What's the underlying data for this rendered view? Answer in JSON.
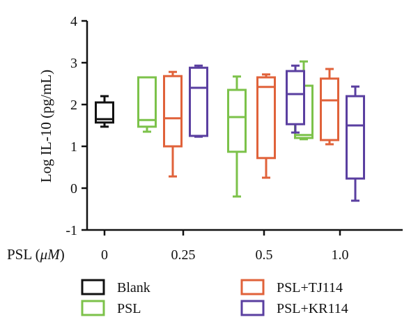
{
  "chart_data": {
    "type": "box",
    "ylabel": "Log IL-10 (pg/mL)",
    "xlabel_prefix": "PSL (",
    "xlabel_unit_italic": "μM",
    "xlabel_suffix": ")",
    "ylim": [
      -1,
      4
    ],
    "yticks": [
      "4",
      "3",
      "2",
      "1",
      "0",
      "-1"
    ],
    "categories": [
      "0",
      "0.25",
      "0.5",
      "1.0"
    ],
    "legend_position": "bottom",
    "series": [
      {
        "name": "Blank",
        "color": "#111111",
        "boxes": [
          {
            "category": "0",
            "min": 1.47,
            "q1": 1.57,
            "median": 1.65,
            "q3": 2.05,
            "max": 2.2
          }
        ]
      },
      {
        "name": "PSL",
        "color": "#7cc24a",
        "boxes": [
          {
            "category": "0.25",
            "min": 1.35,
            "q1": 1.47,
            "median": 1.63,
            "q3": 2.65,
            "max": 2.65
          },
          {
            "category": "0.5",
            "min": -0.2,
            "q1": 0.87,
            "median": 1.7,
            "q3": 2.35,
            "max": 2.67
          },
          {
            "category": "1.0",
            "min": 1.17,
            "q1": 1.2,
            "median": 1.27,
            "q3": 2.45,
            "max": 3.03
          }
        ]
      },
      {
        "name": "PSL+TJ114",
        "color": "#e0623a",
        "boxes": [
          {
            "category": "0.25",
            "min": 0.28,
            "q1": 1.0,
            "median": 1.67,
            "q3": 2.68,
            "max": 2.78
          },
          {
            "category": "0.5",
            "min": 0.25,
            "q1": 0.72,
            "median": 2.42,
            "q3": 2.65,
            "max": 2.72
          },
          {
            "category": "1.0",
            "min": 1.05,
            "q1": 1.15,
            "median": 2.1,
            "q3": 2.62,
            "max": 2.85
          }
        ]
      },
      {
        "name": "PSL+KR114",
        "color": "#5a3fa0",
        "boxes": [
          {
            "category": "0.25",
            "min": 1.23,
            "q1": 1.25,
            "median": 2.4,
            "q3": 2.88,
            "max": 2.93
          },
          {
            "category": "0.5",
            "min": 1.33,
            "q1": 1.53,
            "median": 2.25,
            "q3": 2.8,
            "max": 2.93
          },
          {
            "category": "1.0",
            "min": -0.3,
            "q1": 0.23,
            "median": 1.5,
            "q3": 2.2,
            "max": 2.43
          }
        ]
      }
    ]
  }
}
